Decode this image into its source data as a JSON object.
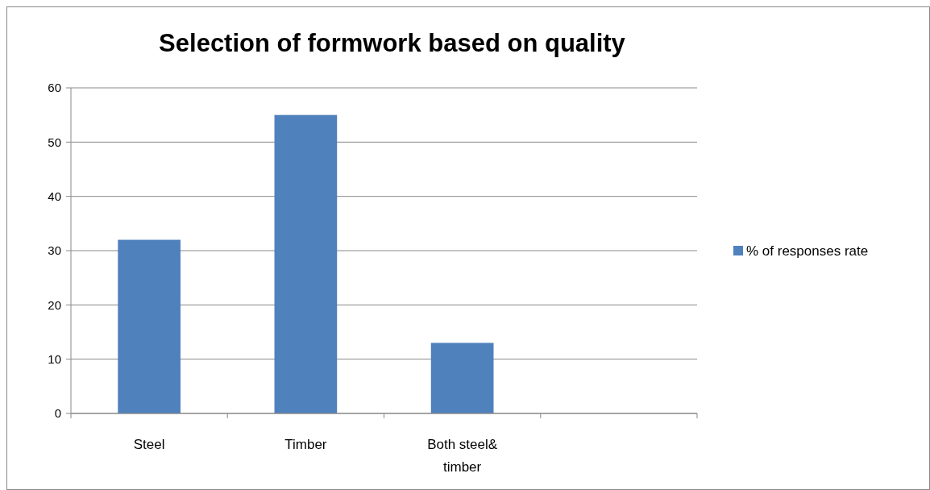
{
  "chart_data": {
    "type": "bar",
    "title": "Selection of formwork based on quality",
    "categories": [
      "Steel",
      "Timber",
      "Both steel& timber",
      null
    ],
    "series": [
      {
        "name": "% of responses rate",
        "color": "#4f81bd",
        "values": [
          32,
          55,
          13,
          null
        ]
      }
    ],
    "ylim": [
      0,
      60
    ],
    "yticks": [
      0,
      10,
      20,
      30,
      40,
      50,
      60
    ],
    "grid": "y",
    "legend": "right"
  }
}
